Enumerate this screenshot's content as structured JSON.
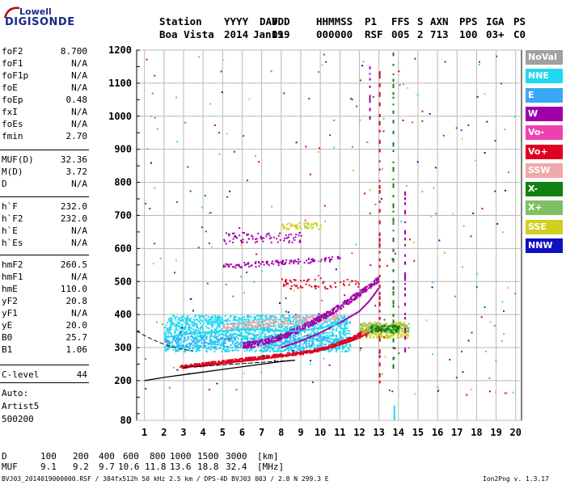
{
  "logo": {
    "line1": "Lowell",
    "line2": "DIGISONDE"
  },
  "header": {
    "labels": [
      "Station",
      "YYYY",
      "DAY",
      "DDD",
      "HHMMSS",
      "P1",
      "FFS",
      "S",
      "AXN",
      "PPS",
      "IGA",
      "PS"
    ],
    "values": [
      "Boa Vista",
      "2014",
      "Jan19",
      "019",
      "000000",
      "RSF",
      "005",
      "2",
      "713",
      "100",
      "03+",
      "C0"
    ]
  },
  "params": {
    "group1": [
      {
        "name": "foF2",
        "value": "8.700"
      },
      {
        "name": "foF1",
        "value": "N/A"
      },
      {
        "name": "foF1p",
        "value": "N/A"
      },
      {
        "name": "foE",
        "value": "N/A"
      },
      {
        "name": "foEp",
        "value": "0.48"
      },
      {
        "name": "fxI",
        "value": "N/A"
      },
      {
        "name": "foEs",
        "value": "N/A"
      },
      {
        "name": "fmin",
        "value": "2.70"
      }
    ],
    "group2": [
      {
        "name": "MUF(D)",
        "value": "32.36"
      },
      {
        "name": "M(D)",
        "value": "3.72"
      },
      {
        "name": "D",
        "value": "N/A"
      }
    ],
    "group3": [
      {
        "name": "h`F",
        "value": "232.0"
      },
      {
        "name": "h`F2",
        "value": "232.0"
      },
      {
        "name": "h`E",
        "value": "N/A"
      },
      {
        "name": "h`Es",
        "value": "N/A"
      }
    ],
    "group4": [
      {
        "name": "hmF2",
        "value": "260.5"
      },
      {
        "name": "hmF1",
        "value": "N/A"
      },
      {
        "name": "hmE",
        "value": "110.0"
      },
      {
        "name": "yF2",
        "value": "20.8"
      },
      {
        "name": "yF1",
        "value": "N/A"
      },
      {
        "name": "yE",
        "value": "20.0"
      },
      {
        "name": "B0",
        "value": "25.7"
      },
      {
        "name": "B1",
        "value": "1.06"
      }
    ],
    "group5": [
      {
        "name": "C-level",
        "value": "44"
      }
    ],
    "footer_lines": [
      "Auto:",
      "Artist5",
      "500200"
    ]
  },
  "legend": [
    {
      "label": "NoVal",
      "color": "#a0a0a0"
    },
    {
      "label": "NNE",
      "color": "#20d8f0"
    },
    {
      "label": "E",
      "color": "#3aa8f8"
    },
    {
      "label": "W",
      "color": "#a000a8"
    },
    {
      "label": "Vo-",
      "color": "#f040b0"
    },
    {
      "label": "Vo+",
      "color": "#e00020"
    },
    {
      "label": "SSW",
      "color": "#f0a8a8"
    },
    {
      "label": "X-",
      "color": "#108010"
    },
    {
      "label": "X+",
      "color": "#80c060"
    },
    {
      "label": "SSE",
      "color": "#d0d020"
    },
    {
      "label": "NNW",
      "color": "#1010c0"
    }
  ],
  "bottom": {
    "d_label": "D",
    "d_values": [
      "100",
      "200",
      "400",
      "600",
      "800",
      "1000",
      "1500",
      "3000"
    ],
    "d_unit": "[km]",
    "muf_label": "MUF",
    "muf_values": [
      "9.1",
      "9.2",
      "9.7",
      "10.6",
      "11.8",
      "13.6",
      "18.8",
      "32.4"
    ],
    "muf_unit": "[MHz]",
    "file_info": "BVJ03_2014019000000.RSF / 384fx512h 50 kHz 2.5 km / DPS-4D BVJ03 003 / 2.8 N 299.3 E",
    "version": "Ion2Png v. 1.3.17"
  },
  "chart_data": {
    "type": "scatter",
    "x_ticks": [
      "1",
      "2",
      "3",
      "4",
      "5",
      "6",
      "7",
      "8",
      "9",
      "10",
      "11",
      "12",
      "13",
      "14",
      "15",
      "16",
      "17",
      "18",
      "19",
      "20"
    ],
    "y_ticks": [
      "80",
      "200",
      "300",
      "400",
      "500",
      "600",
      "700",
      "800",
      "900",
      "1000",
      "1100",
      "1200"
    ],
    "xlim": [
      1,
      20
    ],
    "ylim": [
      80,
      1200
    ],
    "grid": true,
    "legend_position": "right",
    "traces": [
      {
        "name": "O-trace F2 (red)",
        "color": "#e00020",
        "x": [
          2.9,
          3.5,
          4.5,
          5.5,
          6.5,
          7.5,
          8.5,
          9.5,
          10.5,
          11.5,
          12.0,
          12.5
        ],
        "y": [
          240,
          245,
          250,
          256,
          262,
          270,
          278,
          288,
          300,
          318,
          330,
          345
        ]
      },
      {
        "name": "X-trace F2 (magenta)",
        "color": "#a000a8",
        "x": [
          8.0,
          9.0,
          10.0,
          11.0,
          12.0,
          12.5,
          13.0
        ],
        "y": [
          300,
          320,
          345,
          375,
          410,
          440,
          480
        ]
      },
      {
        "name": "Multi-hop spread (cyan)",
        "color": "#20d8f0",
        "x": [
          2.0,
          3.0,
          4.0,
          5.0,
          6.0,
          7.0,
          8.0,
          9.0,
          10.0,
          11.0
        ],
        "y": [
          330,
          340,
          345,
          350,
          355,
          355,
          350,
          350,
          360,
          370
        ]
      },
      {
        "name": "Model profile (black)",
        "color": "#000000",
        "x": [
          1.0,
          2.0,
          3.0,
          4.0,
          5.0,
          6.0,
          7.0,
          8.0,
          8.7
        ],
        "y": [
          200,
          210,
          218,
          226,
          234,
          242,
          250,
          258,
          262
        ]
      }
    ]
  }
}
